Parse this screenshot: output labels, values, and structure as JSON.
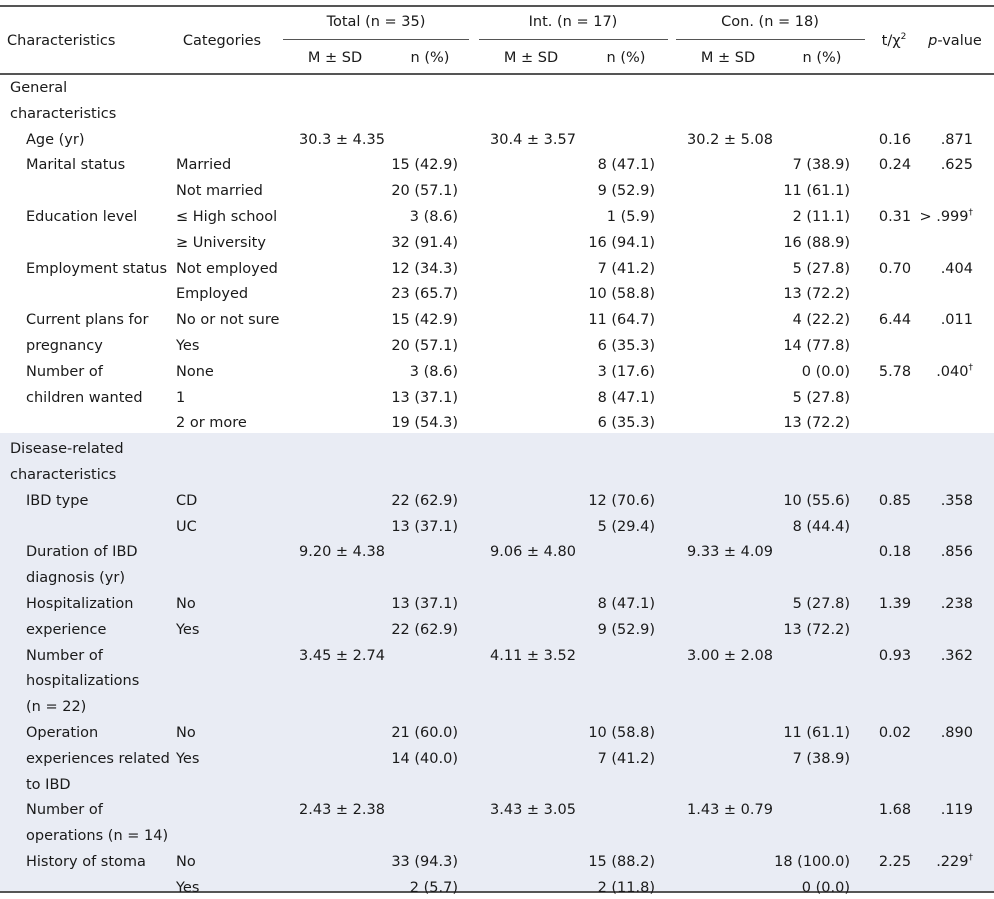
{
  "header": {
    "characteristics": "Characteristics",
    "categories": "Categories",
    "total": "Total (n = 35)",
    "int": "Int. (n = 17)",
    "con": "Con. (n = 18)",
    "t_chi": "t/χ",
    "t_chi_sup": "2",
    "p_italic": "p",
    "p_rest": "-value",
    "msd": "M ± SD",
    "npct": "n (%)"
  },
  "sections": [
    {
      "title": [
        "General",
        "characteristics"
      ],
      "rows": [
        {
          "label": [
            "Age (yr)"
          ],
          "lines": [
            {
              "cat": "",
              "tm": "30.3 ± 4.35",
              "tn": "",
              "im": "30.4 ± 3.57",
              "in": "",
              "cm": "30.2 ± 5.08",
              "cn": "",
              "stat": "0.16",
              "p": ".871",
              "dag": ""
            }
          ]
        },
        {
          "label": [
            "Marital status"
          ],
          "lines": [
            {
              "cat": "Married",
              "tm": "",
              "tn": "15 (42.9)",
              "im": "",
              "in": "8 (47.1)",
              "cm": "",
              "cn": "7 (38.9)",
              "stat": "0.24",
              "p": ".625",
              "dag": ""
            },
            {
              "cat": "Not married",
              "tm": "",
              "tn": "20 (57.1)",
              "im": "",
              "in": "9 (52.9)",
              "cm": "",
              "cn": "11 (61.1)",
              "stat": "",
              "p": "",
              "dag": ""
            }
          ]
        },
        {
          "label": [
            "Education level"
          ],
          "lines": [
            {
              "cat": "≤ High school",
              "tm": "",
              "tn": "3 (8.6)",
              "im": "",
              "in": "1 (5.9)",
              "cm": "",
              "cn": "2 (11.1)",
              "stat": "0.31",
              "p": "> .999",
              "dag": "†"
            },
            {
              "cat": "≥ University",
              "tm": "",
              "tn": "32 (91.4)",
              "im": "",
              "in": "16 (94.1)",
              "cm": "",
              "cn": "16 (88.9)",
              "stat": "",
              "p": "",
              "dag": ""
            }
          ]
        },
        {
          "label": [
            "Employment status"
          ],
          "lines": [
            {
              "cat": "Not employed",
              "tm": "",
              "tn": "12 (34.3)",
              "im": "",
              "in": "7 (41.2)",
              "cm": "",
              "cn": "5 (27.8)",
              "stat": "0.70",
              "p": ".404",
              "dag": ""
            },
            {
              "cat": "Employed",
              "tm": "",
              "tn": "23 (65.7)",
              "im": "",
              "in": "10 (58.8)",
              "cm": "",
              "cn": "13 (72.2)",
              "stat": "",
              "p": "",
              "dag": ""
            }
          ]
        },
        {
          "label": [
            "Current plans for",
            " pregnancy"
          ],
          "lines": [
            {
              "cat": "No or not sure",
              "tm": "",
              "tn": "15 (42.9)",
              "im": "",
              "in": "11 (64.7)",
              "cm": "",
              "cn": "4 (22.2)",
              "stat": "6.44",
              "p": ".011",
              "dag": ""
            },
            {
              "cat": "Yes",
              "tm": "",
              "tn": "20 (57.1)",
              "im": "",
              "in": "6 (35.3)",
              "cm": "",
              "cn": "14 (77.8)",
              "stat": "",
              "p": "",
              "dag": ""
            }
          ]
        },
        {
          "label": [
            "Number of",
            " children wanted"
          ],
          "lines": [
            {
              "cat": "None",
              "tm": "",
              "tn": "3 (8.6)",
              "im": "",
              "in": "3 (17.6)",
              "cm": "",
              "cn": "0 (0.0)",
              "stat": "5.78",
              "p": ".040",
              "dag": "†"
            },
            {
              "cat": "1",
              "tm": "",
              "tn": "13 (37.1)",
              "im": "",
              "in": "8 (47.1)",
              "cm": "",
              "cn": "5 (27.8)",
              "stat": "",
              "p": "",
              "dag": ""
            },
            {
              "cat": "2 or more",
              "tm": "",
              "tn": "19 (54.3)",
              "im": "",
              "in": "6 (35.3)",
              "cm": "",
              "cn": "13 (72.2)",
              "stat": "",
              "p": "",
              "dag": ""
            }
          ]
        }
      ]
    },
    {
      "title": [
        "Disease-related",
        "characteristics"
      ],
      "rows": [
        {
          "label": [
            "IBD type"
          ],
          "lines": [
            {
              "cat": "CD",
              "tm": "",
              "tn": "22 (62.9)",
              "im": "",
              "in": "12 (70.6)",
              "cm": "",
              "cn": "10 (55.6)",
              "stat": "0.85",
              "p": ".358",
              "dag": ""
            },
            {
              "cat": "UC",
              "tm": "",
              "tn": "13 (37.1)",
              "im": "",
              "in": "5 (29.4)",
              "cm": "",
              "cn": "8 (44.4)",
              "stat": "",
              "p": "",
              "dag": ""
            }
          ]
        },
        {
          "label": [
            "Duration of IBD",
            "diagnosis (yr)"
          ],
          "lines": [
            {
              "cat": "",
              "tm": "9.20 ± 4.38",
              "tn": "",
              "im": "9.06 ± 4.80",
              "in": "",
              "cm": "9.33 ± 4.09",
              "cn": "",
              "stat": "0.18",
              "p": ".856",
              "dag": ""
            }
          ]
        },
        {
          "label": [
            "Hospitalization",
            " experience"
          ],
          "lines": [
            {
              "cat": "No",
              "tm": "",
              "tn": "13 (37.1)",
              "im": "",
              "in": "8 (47.1)",
              "cm": "",
              "cn": "5 (27.8)",
              "stat": "1.39",
              "p": ".238",
              "dag": ""
            },
            {
              "cat": "Yes",
              "tm": "",
              "tn": "22 (62.9)",
              "im": "",
              "in": "9 (52.9)",
              "cm": "",
              "cn": "13 (72.2)",
              "stat": "",
              "p": "",
              "dag": ""
            }
          ]
        },
        {
          "label": [
            "Number of",
            " hospitalizations",
            " (n = 22)"
          ],
          "lines": [
            {
              "cat": "",
              "tm": "3.45 ± 2.74",
              "tn": "",
              "im": "4.11 ± 3.52",
              "in": "",
              "cm": "3.00 ± 2.08",
              "cn": "",
              "stat": "0.93",
              "p": ".362",
              "dag": ""
            }
          ]
        },
        {
          "label": [
            "Operation",
            " experiences related",
            " to IBD"
          ],
          "lines": [
            {
              "cat": "No",
              "tm": "",
              "tn": "21 (60.0)",
              "im": "",
              "in": "10 (58.8)",
              "cm": "",
              "cn": "11 (61.1)",
              "stat": "0.02",
              "p": ".890",
              "dag": ""
            },
            {
              "cat": "Yes",
              "tm": "",
              "tn": "14 (40.0)",
              "im": "",
              "in": "7 (41.2)",
              "cm": "",
              "cn": "7 (38.9)",
              "stat": "",
              "p": "",
              "dag": ""
            }
          ]
        },
        {
          "label": [
            "Number of",
            "operations (n = 14)"
          ],
          "lines": [
            {
              "cat": "",
              "tm": "2.43 ± 2.38",
              "tn": "",
              "im": "3.43 ± 3.05",
              "in": "",
              "cm": "1.43 ± 0.79",
              "cn": "",
              "stat": "1.68",
              "p": ".119",
              "dag": ""
            }
          ]
        },
        {
          "label": [
            "History of stoma"
          ],
          "lines": [
            {
              "cat": "No",
              "tm": "",
              "tn": "33 (94.3)",
              "im": "",
              "in": "15 (88.2)",
              "cm": "",
              "cn": "18 (100.0)",
              "stat": "2.25",
              "p": ".229",
              "dag": "†"
            },
            {
              "cat": "Yes",
              "tm": "",
              "tn": "2 (5.7)",
              "im": "",
              "in": "2 (11.8)",
              "cm": "",
              "cn": "0 (0.0)",
              "stat": "",
              "p": "",
              "dag": ""
            }
          ]
        }
      ]
    }
  ]
}
